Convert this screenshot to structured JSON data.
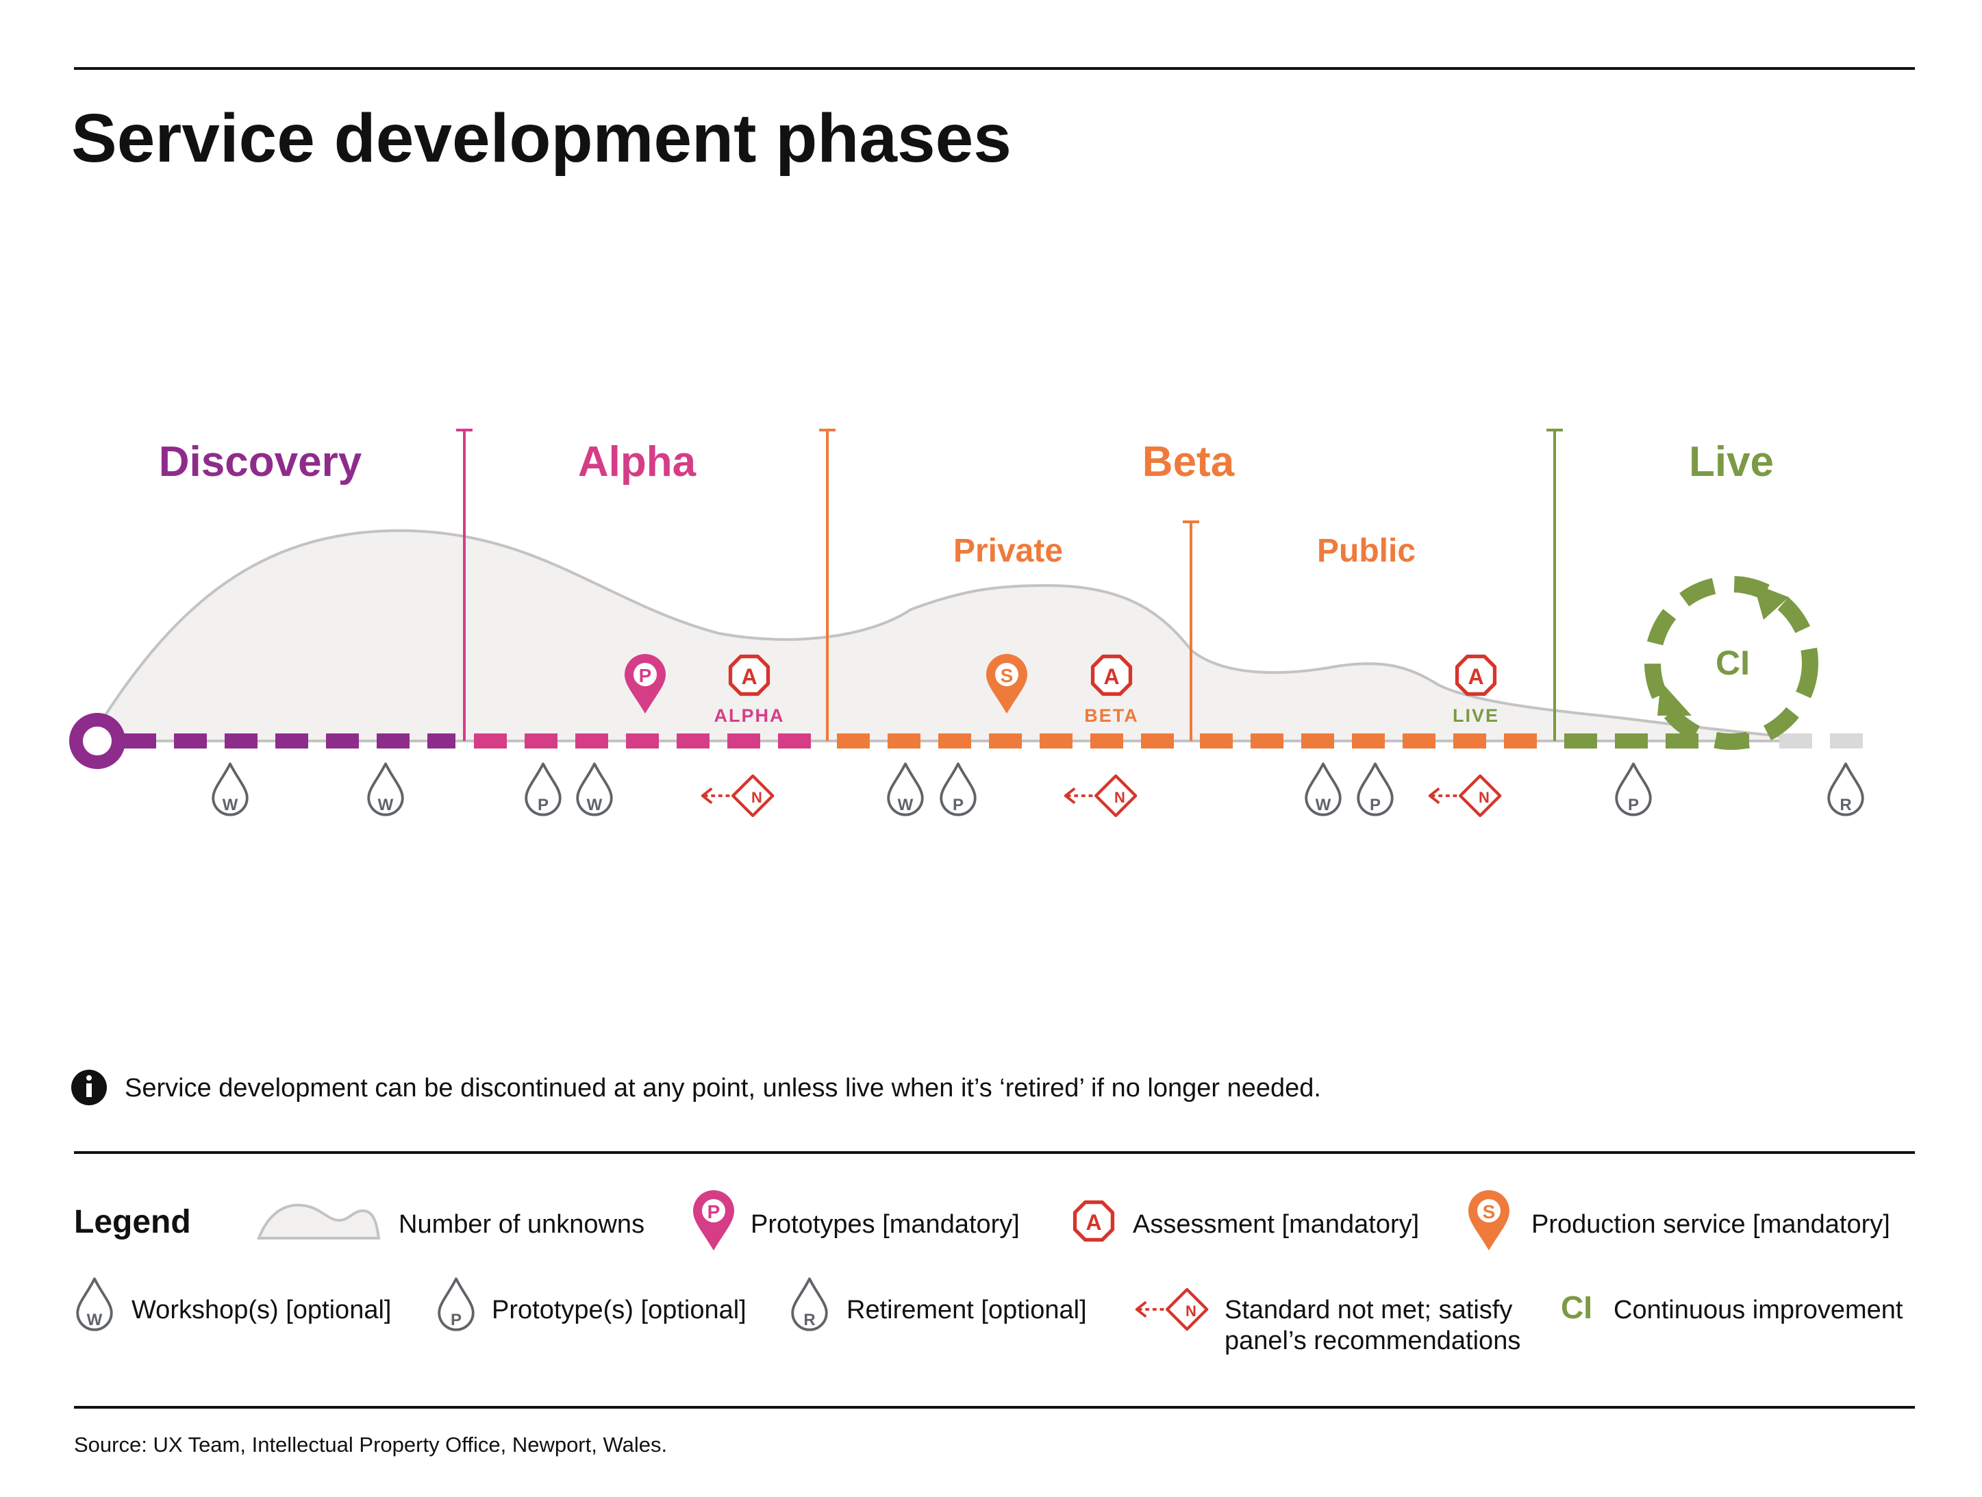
{
  "title": "Service development phases",
  "phases": {
    "discovery": "Discovery",
    "alpha": "Alpha",
    "beta": "Beta",
    "live": "Live",
    "private": "Private",
    "public": "Public"
  },
  "gates": {
    "alpha": "ALPHA",
    "beta": "BETA",
    "live": "LIVE"
  },
  "icon_letters": {
    "prototype": "P",
    "assessment": "A",
    "production": "S",
    "workshop": "W",
    "retirement": "R",
    "not_met": "N",
    "ci": "CI"
  },
  "note": "Service development can be discontinued at any point, unless live when it’s ‘retired’ if no longer needed.",
  "legend": {
    "heading": "Legend",
    "unknowns": "Number of unknowns",
    "prototypes_mandatory": "Prototypes [mandatory]",
    "assessment_mandatory": "Assessment [mandatory]",
    "production_mandatory": "Production service [mandatory]",
    "workshops_optional": "Workshop(s) [optional]",
    "prototypes_optional": "Prototype(s) [optional]",
    "retirement_optional": "Retirement [optional]",
    "not_met_line1": "Standard not met; satisfy",
    "not_met_line2": "panel’s recommendations",
    "continuous_improvement": "Continuous improvement"
  },
  "source": "Source: UX Team, Intellectual Property Office, Newport, Wales.",
  "colors": {
    "discovery": "#8e2c8b",
    "alpha": "#d63d87",
    "beta": "#ee7b3b",
    "live": "#7b9a43",
    "assessment": "#d7352b",
    "retired": "#d9d9d9",
    "unknowns_fill": "#f2f1f0",
    "unknowns_stroke": "#c3c3c3",
    "optional_icon": "#606468"
  },
  "icons": [
    "workshop-icon",
    "prototype-optional-icon",
    "retirement-icon",
    "prototype-pin-icon",
    "assessment-icon",
    "production-pin-icon",
    "not-met-icon",
    "continuous-improvement-icon",
    "info-icon"
  ]
}
